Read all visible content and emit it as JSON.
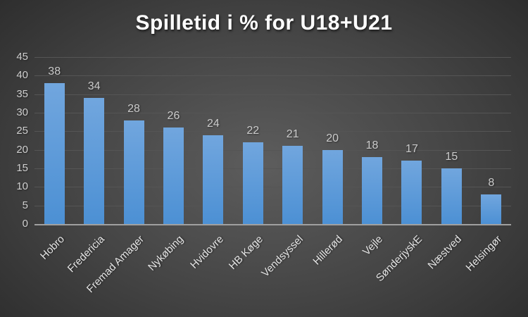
{
  "chart_data": {
    "type": "bar",
    "title": "Spilletid i % for U18+U21",
    "categories": [
      "Hobro",
      "Fredericia",
      "Fremad Amager",
      "Nykøbing",
      "Hvidovre",
      "HB Køge",
      "Vendsyssel",
      "Hillerød",
      "Vejle",
      "SønderjyskE",
      "Næstved",
      "Helsingør"
    ],
    "values": [
      38,
      34,
      28,
      26,
      24,
      22,
      21,
      20,
      18,
      17,
      15,
      8
    ],
    "xlabel": "",
    "ylabel": "",
    "ylim": [
      0,
      45
    ],
    "yticks": [
      0,
      5,
      10,
      15,
      20,
      25,
      30,
      35,
      40,
      45
    ],
    "grid": true,
    "legend": "none",
    "data_labels": true,
    "colors": {
      "bar_top": "#71a6de",
      "bar_bottom": "#4c90d4",
      "background_center": "#5d5d5d",
      "background_mid": "#454545",
      "background_edge": "#232323",
      "gridline": "#555555",
      "axis_line": "#a0a0a0",
      "title": "#ffffff",
      "value_label": "#cbcbcb",
      "tick_label": "#cfcfcf",
      "category_label": "#e4e4e4"
    }
  }
}
